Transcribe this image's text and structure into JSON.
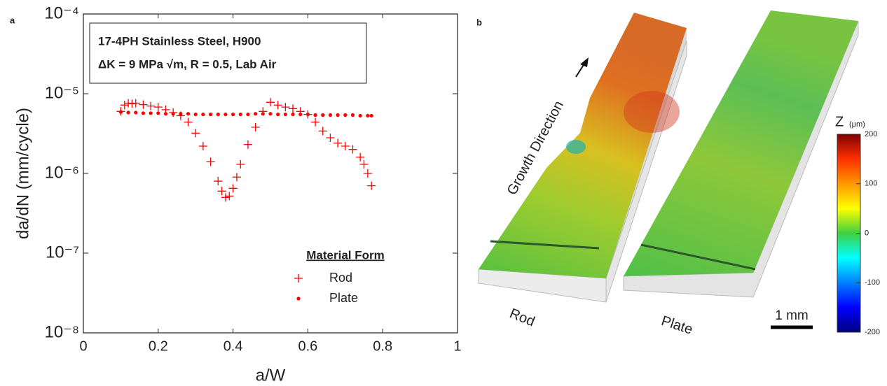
{
  "chart_data": {
    "type": "scatter",
    "panel_label": "a",
    "annotations": [
      "17-4PH Stainless Steel, H900",
      "ΔK = 9 MPa √m, R = 0.5, Lab Air"
    ],
    "x_label": "a/W",
    "y_label": "da/dN (mm/cycle)",
    "legend_title": "Material Form",
    "xlim": [
      0,
      1
    ],
    "xticks": [
      0,
      0.2,
      0.4,
      0.6,
      0.8,
      1
    ],
    "ylim": [
      1e-08,
      0.0001
    ],
    "y_log": true,
    "yticks": [
      {
        "value": 1e-08,
        "label": "10⁻⁸"
      },
      {
        "value": 1e-07,
        "label": "10⁻⁷"
      },
      {
        "value": 1e-06,
        "label": "10⁻⁶"
      },
      {
        "value": 1e-05,
        "label": "10⁻⁵"
      },
      {
        "value": 0.0001,
        "label": "10⁻⁴"
      }
    ],
    "series": [
      {
        "name": "Rod",
        "color": "#ff0000",
        "marker": "plus",
        "x": [
          0.1,
          0.11,
          0.12,
          0.13,
          0.14,
          0.16,
          0.18,
          0.2,
          0.22,
          0.24,
          0.26,
          0.28,
          0.3,
          0.32,
          0.34,
          0.36,
          0.37,
          0.38,
          0.39,
          0.4,
          0.41,
          0.42,
          0.44,
          0.46,
          0.48,
          0.5,
          0.52,
          0.54,
          0.56,
          0.58,
          0.6,
          0.62,
          0.64,
          0.66,
          0.68,
          0.7,
          0.72,
          0.74,
          0.75,
          0.76,
          0.77
        ],
        "values": [
          6e-06,
          7.2e-06,
          7.6e-06,
          7.5e-06,
          7.6e-06,
          7.3e-06,
          7e-06,
          6.8e-06,
          6.3e-06,
          5.8e-06,
          5.3e-06,
          4.4e-06,
          3.2e-06,
          2.2e-06,
          1.4e-06,
          8e-07,
          6e-07,
          5e-07,
          5.2e-07,
          6.5e-07,
          9e-07,
          1.3e-06,
          2.3e-06,
          3.8e-06,
          6e-06,
          7.8e-06,
          7.2e-06,
          6.8e-06,
          6.5e-06,
          6e-06,
          5.5e-06,
          4.4e-06,
          3.4e-06,
          2.8e-06,
          2.4e-06,
          2.2e-06,
          2e-06,
          1.6e-06,
          1.3e-06,
          1e-06,
          7e-07
        ]
      },
      {
        "name": "Plate",
        "color": "#ff0000",
        "marker": "dot",
        "x": [
          0.1,
          0.12,
          0.14,
          0.16,
          0.18,
          0.2,
          0.22,
          0.24,
          0.26,
          0.28,
          0.3,
          0.32,
          0.34,
          0.36,
          0.38,
          0.4,
          0.42,
          0.44,
          0.46,
          0.48,
          0.5,
          0.52,
          0.54,
          0.56,
          0.58,
          0.6,
          0.62,
          0.64,
          0.66,
          0.68,
          0.7,
          0.72,
          0.74,
          0.76,
          0.77
        ],
        "values": [
          5.9e-06,
          5.8e-06,
          5.8e-06,
          5.7e-06,
          5.7e-06,
          5.7e-06,
          5.6e-06,
          5.6e-06,
          5.6e-06,
          5.6e-06,
          5.5e-06,
          5.5e-06,
          5.5e-06,
          5.5e-06,
          5.5e-06,
          5.5e-06,
          5.5e-06,
          5.5e-06,
          5.6e-06,
          5.6e-06,
          5.6e-06,
          5.5e-06,
          5.5e-06,
          5.5e-06,
          5.5e-06,
          5.5e-06,
          5.4e-06,
          5.4e-06,
          5.4e-06,
          5.4e-06,
          5.4e-06,
          5.4e-06,
          5.3e-06,
          5.3e-06,
          5.3e-06
        ]
      }
    ]
  },
  "surface_panel": {
    "panel_label": "b",
    "arrow_label": "Growth Direction",
    "specimens": [
      "Rod",
      "Plate"
    ],
    "scale_bar": "1 mm",
    "colorbar": {
      "label": "Z",
      "unit": "(μm)",
      "lim": [
        -200,
        200
      ],
      "ticks": [
        200,
        100,
        0,
        -100,
        -200
      ]
    }
  }
}
